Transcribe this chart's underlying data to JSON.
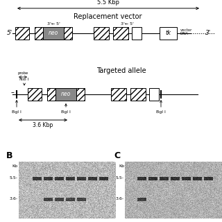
{
  "bg_color": "#ffffff",
  "top_arrow_label": "5.5 Kbp",
  "replacement_label": "Replacement vector",
  "targeted_label": "Targeted allele",
  "neo_color": "#888888",
  "label_3prime_5prime": "3← 5",
  "panel_B": "B",
  "panel_C": "C",
  "kb_label": "Kb",
  "band_55": "5.5-",
  "band_36": "3.6-",
  "kbp_label": "3.6 Kbp"
}
